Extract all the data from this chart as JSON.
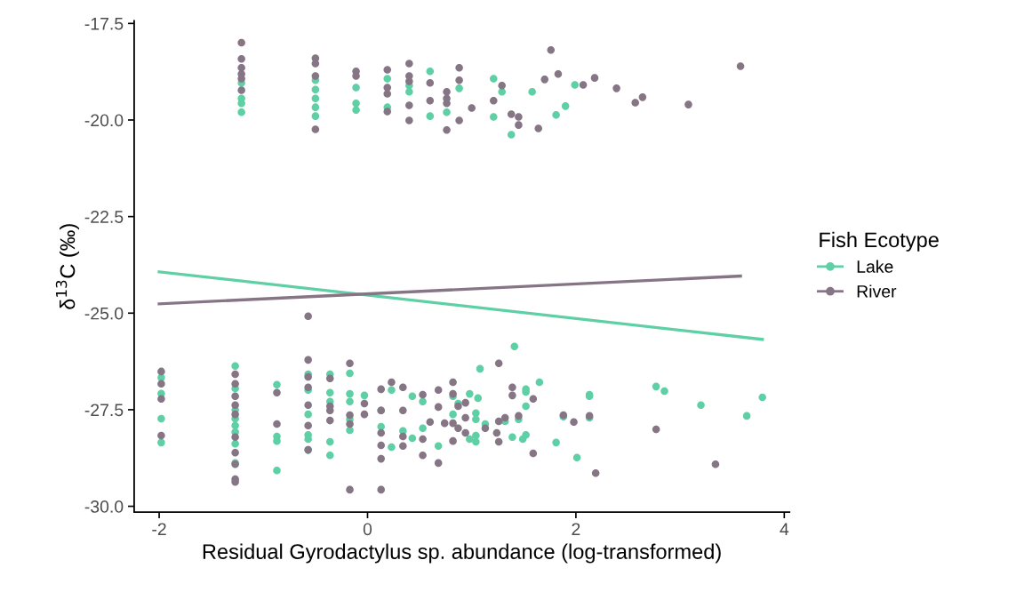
{
  "chart_data": {
    "type": "scatter",
    "xlabel": "Residual Gyrodactylus sp. abundance (log-transformed)",
    "ylabel": "δ$^{13}$C (‰)",
    "legend_title": "Fish Ecotype",
    "legend": "right",
    "grid": false,
    "marker": "circle",
    "xlim": [
      -2.24,
      4.05
    ],
    "xticks": [
      -2,
      0,
      2,
      4
    ],
    "ylim": [
      -30.15,
      -17.43
    ],
    "yticks": [
      {
        "value": -17.5,
        "label": "-17.5"
      },
      {
        "value": -20,
        "label": "-20.0"
      },
      {
        "value": -22.5,
        "label": "-22.5"
      },
      {
        "value": -25,
        "label": "-25.0"
      },
      {
        "value": -27.5,
        "label": "-27.5"
      },
      {
        "value": -30,
        "label": "-30.0"
      }
    ],
    "series": [
      {
        "name": "Lake",
        "color": "#5fcfa5",
        "x": [
          -1.21,
          -1.21,
          -1.21,
          -1.21,
          -0.5,
          -0.5,
          -0.5,
          -0.5,
          -0.5,
          -0.11,
          -0.11,
          -0.11,
          0.19,
          0.19,
          0.4,
          0.4,
          0.6,
          0.6,
          0.76,
          0.88,
          1.21,
          1.21,
          1.29,
          1.38,
          1.58,
          1.81,
          1.9,
          1.99,
          -1.98,
          -1.98,
          -1.98,
          -1.98,
          -1.27,
          -1.27,
          -1.27,
          -1.27,
          -1.27,
          -1.27,
          -1.27,
          -1.27,
          -0.87,
          -0.87,
          -0.87,
          -0.87,
          -0.57,
          -0.57,
          -0.57,
          -0.57,
          -0.57,
          -0.57,
          -0.36,
          -0.36,
          -0.36,
          -0.36,
          -0.36,
          -0.17,
          -0.17,
          -0.17,
          -0.17,
          -0.17,
          -0.03,
          0.13,
          0.13,
          0.23,
          0.23,
          0.34,
          0.43,
          0.43,
          0.53,
          0.53,
          0.68,
          0.82,
          0.82,
          0.87,
          0.98,
          0.98,
          1.04,
          1.04,
          1.04,
          1.04,
          1.06,
          1.08,
          1.13,
          1.32,
          1.39,
          1.41,
          1.45,
          1.49,
          1.52,
          1.52,
          1.52,
          1.52,
          1.65,
          1.81,
          1.88,
          2.01,
          2.13,
          2.13,
          2.13,
          2.77,
          2.85,
          3.2,
          3.64,
          3.79
        ],
        "values": [
          -19.04,
          -19.44,
          -19.57,
          -19.8,
          -18.97,
          -19.21,
          -19.44,
          -19.67,
          -19.9,
          -19.16,
          -19.57,
          -19.74,
          -18.93,
          -19.67,
          -19.11,
          -19.27,
          -18.74,
          -19.9,
          -19.8,
          -19.18,
          -18.93,
          -19.92,
          -19.27,
          -20.38,
          -19.27,
          -19.87,
          -19.64,
          -19.09,
          -26.67,
          -27.08,
          -27.73,
          -28.35,
          -26.37,
          -26.95,
          -27.5,
          -27.73,
          -27.91,
          -28.08,
          -28.38,
          -28.88,
          -26.85,
          -28.19,
          -28.31,
          -29.07,
          -26.58,
          -26.99,
          -27.62,
          -28.15,
          -28.26,
          -28.54,
          -26.58,
          -27.06,
          -27.29,
          -28.33,
          -28.68,
          -26.56,
          -27.09,
          -27.29,
          -27.75,
          -28.03,
          -27.13,
          -27.52,
          -27.94,
          -26.99,
          -28.47,
          -28.05,
          -27.15,
          -28.24,
          -27.29,
          -27.98,
          -28.44,
          -27.15,
          -27.62,
          -27.34,
          -27.09,
          -28.26,
          -27.59,
          -27.75,
          -28.17,
          -28.33,
          -27.2,
          -26.44,
          -27.87,
          -27.8,
          -28.21,
          -25.86,
          -27.75,
          -28.26,
          -26.97,
          -27.04,
          -27.41,
          -28.15,
          -26.79,
          -28.35,
          -27.68,
          -28.74,
          -27.11,
          -27.15,
          -27.71,
          -26.9,
          -27.02,
          -27.38,
          -27.66,
          -27.18
        ]
      },
      {
        "name": "River",
        "color": "#857585",
        "x": [
          -1.21,
          -1.21,
          -1.21,
          -1.21,
          -1.21,
          -1.21,
          -0.5,
          -0.5,
          -0.5,
          -0.5,
          -0.11,
          -0.11,
          0.19,
          0.19,
          0.19,
          0.19,
          0.4,
          0.4,
          0.4,
          0.4,
          0.4,
          0.6,
          0.6,
          0.76,
          0.76,
          0.76,
          0.76,
          0.88,
          0.88,
          0.88,
          1.0,
          1.21,
          1.29,
          1.38,
          1.45,
          1.45,
          1.64,
          1.7,
          1.76,
          1.83,
          2.07,
          2.18,
          2.39,
          2.57,
          2.64,
          3.08,
          3.58,
          -1.98,
          -1.98,
          -1.98,
          -1.98,
          -1.27,
          -1.27,
          -1.27,
          -1.27,
          -1.27,
          -1.27,
          -1.27,
          -1.27,
          -1.27,
          -1.27,
          -0.87,
          -0.87,
          -0.57,
          -0.57,
          -0.57,
          -0.57,
          -0.57,
          -0.57,
          -0.57,
          -0.36,
          -0.36,
          -0.36,
          -0.36,
          -0.17,
          -0.17,
          -0.17,
          -0.17,
          -0.03,
          -0.03,
          0.13,
          0.13,
          0.13,
          0.13,
          0.13,
          0.13,
          0.23,
          0.34,
          0.34,
          0.34,
          0.34,
          0.53,
          0.53,
          0.53,
          0.6,
          0.68,
          0.68,
          0.68,
          0.74,
          0.82,
          0.82,
          0.82,
          0.82,
          0.87,
          0.87,
          0.94,
          0.94,
          0.94,
          1.13,
          1.24,
          1.26,
          1.26,
          1.26,
          1.32,
          1.39,
          1.39,
          1.45,
          1.59,
          1.59,
          1.88,
          1.98,
          2.13,
          2.19,
          2.77,
          3.34
        ],
        "values": [
          -18.0,
          -18.42,
          -18.65,
          -18.81,
          -18.93,
          -19.23,
          -18.4,
          -18.54,
          -18.86,
          -20.24,
          -18.74,
          -18.86,
          -18.7,
          -19.16,
          -19.32,
          -19.78,
          -18.54,
          -18.86,
          -19.0,
          -19.62,
          -20.01,
          -19.04,
          -19.5,
          -19.27,
          -19.44,
          -19.57,
          -20.26,
          -18.65,
          -18.97,
          -20.01,
          -19.69,
          -19.5,
          -19.11,
          -19.85,
          -19.92,
          -20.13,
          -20.22,
          -18.95,
          -18.19,
          -18.81,
          -19.09,
          -18.91,
          -19.18,
          -19.55,
          -19.41,
          -19.6,
          -18.61,
          -26.51,
          -26.83,
          -27.22,
          -28.17,
          -26.58,
          -26.83,
          -27.15,
          -27.38,
          -27.62,
          -28.21,
          -28.61,
          -28.91,
          -29.3,
          -29.37,
          -27.06,
          -27.87,
          -25.08,
          -26.21,
          -26.65,
          -26.92,
          -27.38,
          -27.91,
          -28.54,
          -26.69,
          -27.41,
          -27.52,
          -27.78,
          -26.3,
          -27.64,
          -27.87,
          -29.57,
          -27.34,
          -27.62,
          -26.97,
          -27.52,
          -28.1,
          -28.42,
          -28.77,
          -29.57,
          -26.79,
          -26.92,
          -27.52,
          -28.19,
          -28.44,
          -27.11,
          -28.26,
          -28.68,
          -27.82,
          -26.99,
          -27.43,
          -28.88,
          -27.85,
          -26.79,
          -27.09,
          -27.85,
          -28.31,
          -27.41,
          -27.98,
          -27.32,
          -27.71,
          -28.1,
          -27.98,
          -28.1,
          -26.3,
          -27.8,
          -28.33,
          -27.71,
          -26.92,
          -27.13,
          -27.66,
          -27.22,
          -28.63,
          -27.64,
          -27.82,
          -27.66,
          -29.14,
          -28.01,
          -28.91
        ]
      },
      {
        "type": "line",
        "marker": "none",
        "color": "#5fcfa5",
        "x": [
          -2,
          3.79
        ],
        "values": [
          -23.93,
          -25.68
        ]
      },
      {
        "type": "line",
        "marker": "none",
        "color": "#857585",
        "x": [
          -2,
          3.58
        ],
        "values": [
          -24.76,
          -24.04
        ]
      }
    ]
  }
}
